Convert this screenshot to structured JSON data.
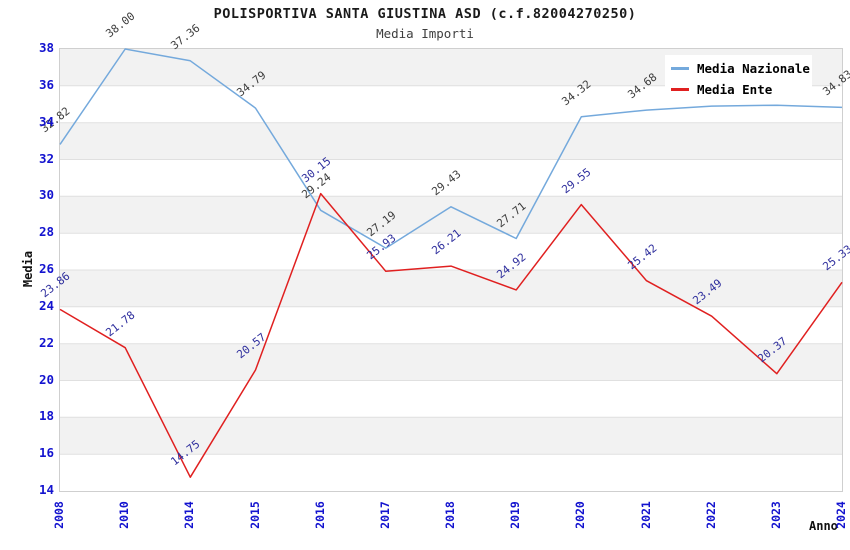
{
  "title": "POLISPORTIVA SANTA GIUSTINA ASD (c.f.82004270250)",
  "subtitle": "Media Importi",
  "chart_data": {
    "type": "line",
    "title": "POLISPORTIVA SANTA GIUSTINA ASD (c.f.82004270250)",
    "subtitle": "Media Importi",
    "xlabel": "Anno",
    "ylabel": "Media",
    "x_categories": [
      "2008",
      "2010",
      "2014",
      "2015",
      "2016",
      "2017",
      "2018",
      "2019",
      "2020",
      "2021",
      "2022",
      "2023",
      "2024"
    ],
    "ylim": [
      14,
      38
    ],
    "y_ticks": [
      14,
      16,
      18,
      20,
      22,
      24,
      26,
      28,
      30,
      32,
      34,
      36,
      38
    ],
    "grid": "horizontal-bands-alternating",
    "legend_position": "top-right-inside",
    "series": [
      {
        "name": "Media Nazionale",
        "color": "#74a9dc",
        "label_color": "#3d3d3d",
        "values": [
          32.82,
          38.0,
          37.36,
          34.79,
          29.24,
          27.19,
          29.43,
          27.71,
          34.32,
          34.68,
          34.9,
          34.95,
          34.83
        ],
        "labels": [
          "32.82",
          "38.00",
          "37.36",
          "34.79",
          "29.24",
          "27.19",
          "29.43",
          "27.71",
          "34.32",
          "34.68",
          null,
          null,
          "34.83"
        ]
      },
      {
        "name": "Media Ente",
        "color": "#e02020",
        "label_color": "#2e2e9d",
        "values": [
          23.86,
          21.78,
          14.75,
          20.57,
          30.15,
          25.93,
          26.21,
          24.92,
          29.55,
          25.42,
          23.49,
          20.37,
          25.33
        ],
        "labels": [
          "23.86",
          "21.78",
          "14.75",
          "20.57",
          "30.15",
          "25.93",
          "26.21",
          "24.92",
          "29.55",
          "25.42",
          "23.49",
          "20.37",
          "25.33"
        ]
      }
    ]
  },
  "colors": {
    "axis_tick_text": "#1313cf",
    "band_gray": "#f2f2f2",
    "band_white": "#ffffff",
    "gridline": "#e0e0e0",
    "plot_border": "#cfcfcf",
    "title_text": "#1a1a1a"
  }
}
